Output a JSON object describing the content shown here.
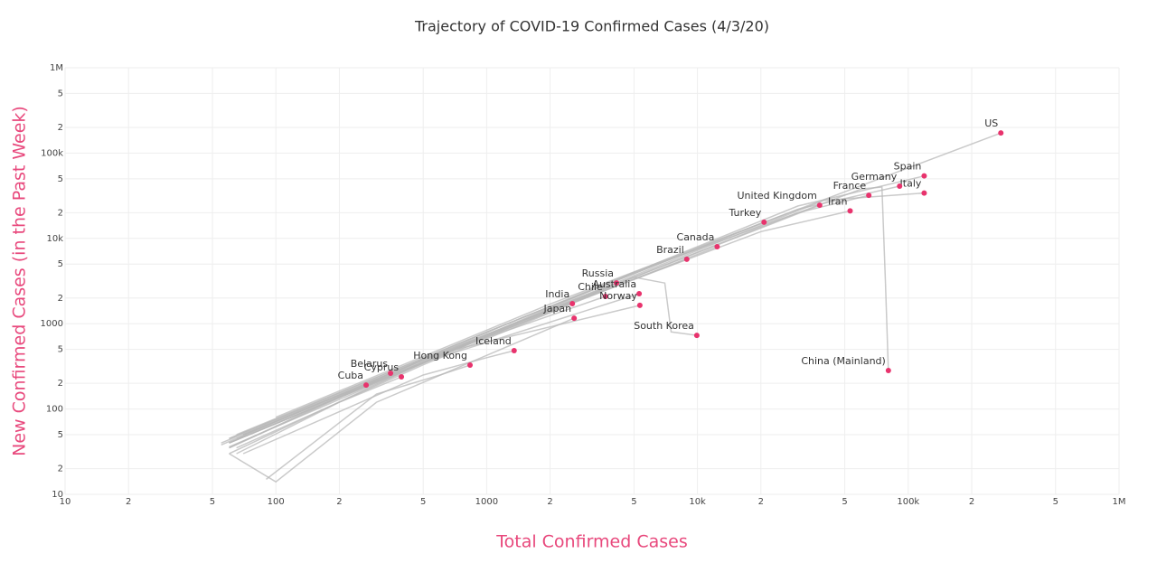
{
  "chart_data": {
    "type": "scatter",
    "title": "Trajectory of COVID-19 Confirmed Cases (4/3/20)",
    "x_label": "Total Confirmed Cases",
    "y_label": "New Confirmed Cases (in the Past Week)",
    "xlog": true,
    "ylog": true,
    "grid": true,
    "line_color": "#b8b8b8",
    "marker_color": "#e8336d",
    "axis_title_color": "#e8487c",
    "xlim": [
      10,
      1000000
    ],
    "ylim": [
      10,
      1000000
    ],
    "xticks": [
      10,
      {
        "value": 20,
        "label": "2"
      },
      {
        "value": 50,
        "label": "5"
      },
      100,
      {
        "value": 200,
        "label": "2"
      },
      {
        "value": 500,
        "label": "5"
      },
      1000,
      {
        "value": 2000,
        "label": "2"
      },
      {
        "value": 5000,
        "label": "5"
      },
      {
        "value": 10000,
        "label": "10k"
      },
      {
        "value": 20000,
        "label": "2"
      },
      {
        "value": 50000,
        "label": "5"
      },
      {
        "value": 100000,
        "label": "100k"
      },
      {
        "value": 200000,
        "label": "2"
      },
      {
        "value": 500000,
        "label": "5"
      },
      {
        "value": 1000000,
        "label": "1M"
      }
    ],
    "yticks": [
      10,
      {
        "value": 20,
        "label": "2"
      },
      {
        "value": 50,
        "label": "5"
      },
      100,
      {
        "value": 200,
        "label": "2"
      },
      {
        "value": 500,
        "label": "5"
      },
      1000,
      {
        "value": 2000,
        "label": "2"
      },
      {
        "value": 5000,
        "label": "5"
      },
      {
        "value": 10000,
        "label": "10k"
      },
      {
        "value": 20000,
        "label": "2"
      },
      {
        "value": 50000,
        "label": "5"
      },
      {
        "value": 100000,
        "label": "100k"
      },
      {
        "value": 200000,
        "label": "2"
      },
      {
        "value": 500000,
        "label": "5"
      },
      {
        "value": 1000000,
        "label": "1M"
      }
    ],
    "series": [
      {
        "name": "US",
        "x": [
          60,
          1000,
          20000,
          275000
        ],
        "y": [
          45,
          800,
          15000,
          172000
        ]
      },
      {
        "name": "Spain",
        "x": [
          65,
          2000,
          30000,
          119000
        ],
        "y": [
          50,
          1600,
          24000,
          54000
        ]
      },
      {
        "name": "Italy",
        "x": [
          60,
          2000,
          40000,
          119000
        ],
        "y": [
          40,
          1500,
          28000,
          34000
        ]
      },
      {
        "name": "Germany",
        "x": [
          55,
          1500,
          30000,
          91000
        ],
        "y": [
          38,
          1200,
          22000,
          41000
        ]
      },
      {
        "name": "France",
        "x": [
          60,
          1500,
          30000,
          65000
        ],
        "y": [
          36,
          1100,
          20000,
          32000
        ]
      },
      {
        "name": "Iran",
        "x": [
          70,
          2000,
          20000,
          53000
        ],
        "y": [
          50,
          1400,
          12000,
          21000
        ]
      },
      {
        "name": "United Kingdom",
        "x": [
          60,
          1500,
          38000
        ],
        "y": [
          40,
          1100,
          24500
        ]
      },
      {
        "name": "Turkey",
        "x": [
          100,
          2000,
          20700
        ],
        "y": [
          80,
          1700,
          15500
        ]
      },
      {
        "name": "Canada",
        "x": [
          60,
          1000,
          12400
        ],
        "y": [
          40,
          700,
          8000
        ]
      },
      {
        "name": "Brazil",
        "x": [
          70,
          1000,
          8900
        ],
        "y": [
          50,
          750,
          5700
        ]
      },
      {
        "name": "Russia",
        "x": [
          60,
          500,
          4130
        ],
        "y": [
          35,
          380,
          3000
        ]
      },
      {
        "name": "Australia",
        "x": [
          60,
          500,
          5290
        ],
        "y": [
          30,
          350,
          2250
        ]
      },
      {
        "name": "Chile",
        "x": [
          65,
          500,
          3660
        ],
        "y": [
          45,
          380,
          2090
        ]
      },
      {
        "name": "Norway",
        "x": [
          60,
          600,
          5330
        ],
        "y": [
          45,
          450,
          1640
        ]
      },
      {
        "name": "India",
        "x": [
          65,
          500,
          2550
        ],
        "y": [
          35,
          330,
          1720
        ]
      },
      {
        "name": "Japan",
        "x": [
          60,
          100,
          300,
          2600
        ],
        "y": [
          30,
          14,
          120,
          1160
        ]
      },
      {
        "name": "South Korea",
        "x": [
          60,
          1000,
          5000,
          7000,
          7500,
          9930
        ],
        "y": [
          40,
          700,
          3500,
          3000,
          800,
          730
        ]
      },
      {
        "name": "China (Mainland)",
        "x": [
          550,
          5000,
          30000,
          60000,
          75000,
          78000,
          80500
        ],
        "y": [
          400,
          4000,
          20000,
          38000,
          40000,
          3000,
          283
        ]
      },
      {
        "name": "Iceland",
        "x": [
          70,
          500,
          1000,
          1350
        ],
        "y": [
          30,
          250,
          400,
          483
        ]
      },
      {
        "name": "Hong Kong",
        "x": [
          90,
          300,
          600,
          834
        ],
        "y": [
          15,
          150,
          250,
          327
        ]
      },
      {
        "name": "Belarus",
        "x": [
          60,
          150,
          350
        ],
        "y": [
          35,
          100,
          263
        ]
      },
      {
        "name": "Cyprus",
        "x": [
          65,
          200,
          394
        ],
        "y": [
          30,
          120,
          238
        ]
      },
      {
        "name": "Cuba",
        "x": [
          55,
          150,
          268
        ],
        "y": [
          40,
          110,
          191
        ]
      }
    ]
  }
}
